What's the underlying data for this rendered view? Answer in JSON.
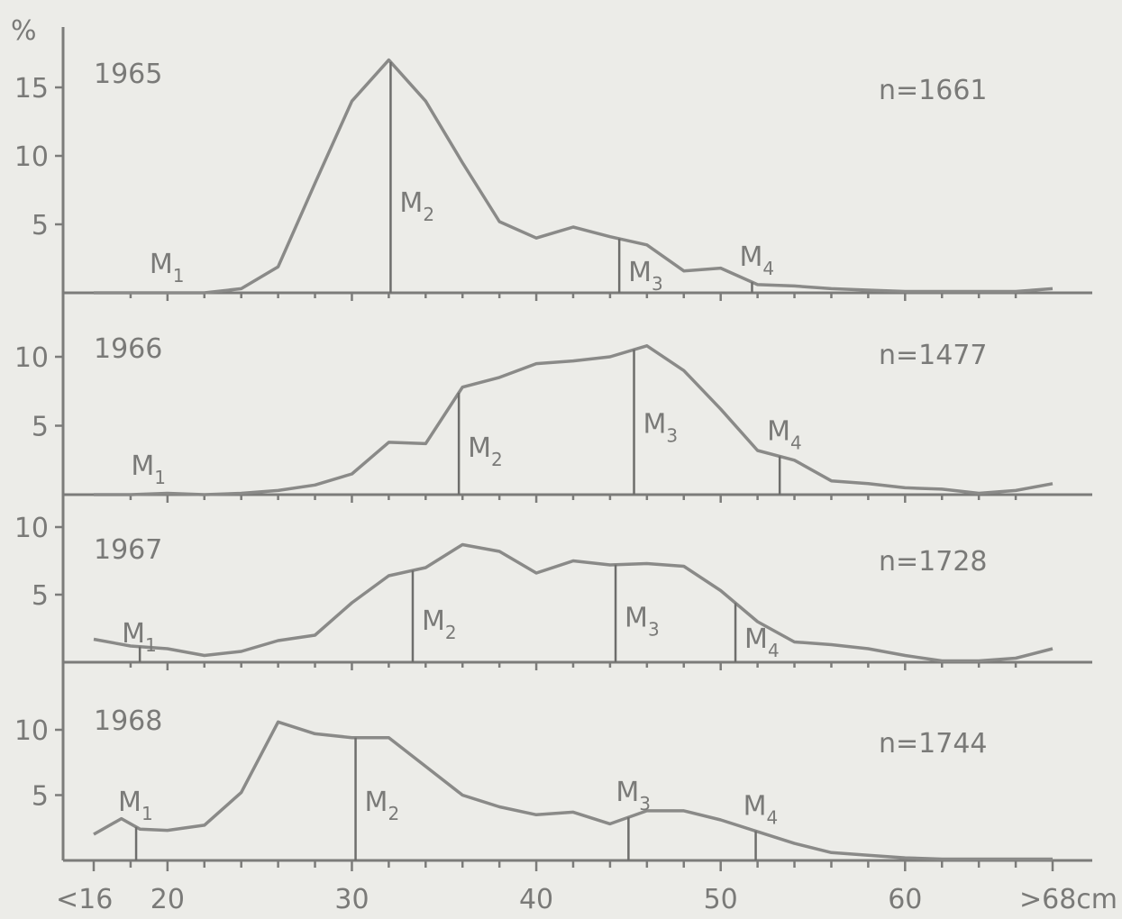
{
  "y_unit": "%",
  "x_unit": "cm",
  "chart_data": [
    {
      "type": "line",
      "year": "1965",
      "n_label": "n=1661",
      "ylim": [
        0,
        17
      ],
      "yticks": [
        5,
        10,
        15
      ],
      "x": [
        16,
        18,
        20,
        22,
        24,
        26,
        28,
        30,
        32,
        34,
        36,
        38,
        40,
        42,
        44,
        46,
        48,
        50,
        52,
        54,
        56,
        58,
        60,
        62,
        64,
        66,
        68
      ],
      "values": [
        0,
        0,
        0,
        0,
        0.3,
        1.9,
        8,
        14,
        17,
        14,
        9.5,
        5.2,
        4,
        4.8,
        4.1,
        3.5,
        1.6,
        1.8,
        0.6,
        0.5,
        0.3,
        0.2,
        0.1,
        0.1,
        0.1,
        0.1,
        0.3
      ],
      "markers": [
        {
          "name": "M",
          "sub": "1",
          "x": 20,
          "line": false
        },
        {
          "name": "M",
          "sub": "2",
          "x": 32.1,
          "line": true
        },
        {
          "name": "M",
          "sub": "3",
          "x": 44.5,
          "line": true
        },
        {
          "name": "M",
          "sub": "4",
          "x": 51.7,
          "line": true
        }
      ]
    },
    {
      "type": "line",
      "year": "1966",
      "n_label": "n=1477",
      "ylim": [
        0,
        11
      ],
      "yticks": [
        5,
        10
      ],
      "x": [
        16,
        18,
        20,
        22,
        24,
        26,
        28,
        30,
        32,
        34,
        36,
        38,
        40,
        42,
        44,
        46,
        48,
        50,
        52,
        54,
        56,
        58,
        60,
        62,
        64,
        66,
        68
      ],
      "values": [
        0,
        0,
        0.1,
        0,
        0.1,
        0.3,
        0.7,
        1.5,
        3.8,
        3.7,
        7.8,
        8.5,
        9.5,
        9.7,
        10,
        10.8,
        9,
        6.2,
        3.2,
        2.5,
        1,
        0.8,
        0.5,
        0.4,
        0.1,
        0.3,
        0.8
      ],
      "markers": [
        {
          "name": "M",
          "sub": "1",
          "x": 19,
          "line": false
        },
        {
          "name": "M",
          "sub": "2",
          "x": 35.8,
          "line": true
        },
        {
          "name": "M",
          "sub": "3",
          "x": 45.3,
          "line": true
        },
        {
          "name": "M",
          "sub": "4",
          "x": 53.2,
          "line": true
        }
      ]
    },
    {
      "type": "line",
      "year": "1967",
      "n_label": "n=1728",
      "ylim": [
        0,
        10
      ],
      "yticks": [
        5,
        10
      ],
      "x": [
        16,
        18,
        20,
        22,
        24,
        26,
        28,
        30,
        32,
        34,
        36,
        38,
        40,
        42,
        44,
        46,
        48,
        50,
        52,
        54,
        56,
        58,
        60,
        62,
        64,
        66,
        68
      ],
      "values": [
        1.7,
        1.2,
        1,
        0.5,
        0.8,
        1.6,
        2,
        4.4,
        6.4,
        7,
        8.7,
        8.2,
        6.6,
        7.5,
        7.2,
        7.3,
        7.1,
        5.3,
        3,
        1.5,
        1.3,
        1,
        0.5,
        0.1,
        0.1,
        0.3,
        1
      ],
      "markers": [
        {
          "name": "M",
          "sub": "1",
          "x": 18.5,
          "line": true
        },
        {
          "name": "M",
          "sub": "2",
          "x": 33.3,
          "line": true
        },
        {
          "name": "M",
          "sub": "3",
          "x": 44.3,
          "line": true
        },
        {
          "name": "M",
          "sub": "4",
          "x": 50.8,
          "line": true
        }
      ]
    },
    {
      "type": "line",
      "year": "1968",
      "n_label": "n=1744",
      "ylim": [
        0,
        11
      ],
      "yticks": [
        5,
        10
      ],
      "x": [
        16,
        17.5,
        18.5,
        20,
        22,
        24,
        26,
        28,
        30,
        32,
        34,
        36,
        38,
        40,
        42,
        44,
        46,
        48,
        50,
        52,
        54,
        56,
        58,
        60,
        62,
        64,
        66,
        68
      ],
      "values": [
        2,
        3.2,
        2.4,
        2.3,
        2.7,
        5.2,
        10.6,
        9.7,
        9.4,
        9.4,
        7.2,
        5,
        4.1,
        3.5,
        3.7,
        2.8,
        3.8,
        3.8,
        3.1,
        2.2,
        1.3,
        0.6,
        0.4,
        0.2,
        0.1,
        0.1,
        0.1,
        0.1
      ],
      "markers": [
        {
          "name": "M",
          "sub": "1",
          "x": 18.3,
          "line": true
        },
        {
          "name": "M",
          "sub": "2",
          "x": 30.2,
          "line": true
        },
        {
          "name": "M",
          "sub": "3",
          "x": 45,
          "line": true
        },
        {
          "name": "M",
          "sub": "4",
          "x": 51.9,
          "line": true
        }
      ]
    }
  ],
  "x_axis": {
    "ticks": [
      16,
      20,
      30,
      40,
      50,
      60,
      68
    ],
    "labels": [
      "<16",
      "20",
      "30",
      "40",
      "50",
      "60",
      ">68cm"
    ],
    "minor_ticks": [
      18,
      22,
      24,
      26,
      28,
      32,
      34,
      36,
      38,
      42,
      44,
      46,
      48,
      52,
      54,
      56,
      58,
      62,
      64,
      66
    ]
  }
}
